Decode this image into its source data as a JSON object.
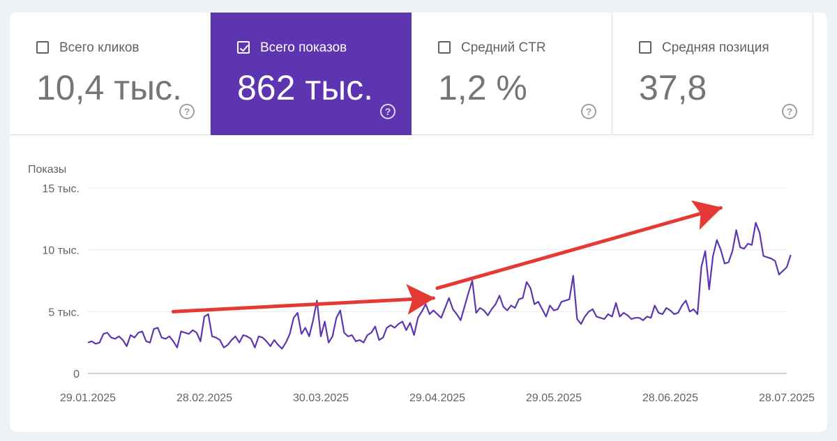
{
  "cards": [
    {
      "label": "Всего кликов",
      "value": "10,4 тыс.",
      "selected": false
    },
    {
      "label": "Всего показов",
      "value": "862 тыс.",
      "selected": true
    },
    {
      "label": "Средний CTR",
      "value": "1,2 %",
      "selected": false
    },
    {
      "label": "Средняя позиция",
      "value": "37,8",
      "selected": false
    }
  ],
  "help_glyph": "?",
  "colors": {
    "accent": "#5e35b1",
    "series_line": "#5e35b1",
    "annotation_arrow": "#e53935",
    "grid": "#e8eaed",
    "text": "#5f6368"
  },
  "chart_data": {
    "type": "line",
    "ylabel": "Показы",
    "xlabel": "",
    "title": "",
    "ylim": [
      0,
      15000
    ],
    "yticks": [
      0,
      5000,
      10000,
      15000
    ],
    "ytick_labels": [
      "0",
      "5 тыс.",
      "10 тыс.",
      "15 тыс."
    ],
    "xtick_labels": [
      "29.01.2025",
      "28.02.2025",
      "30.03.2025",
      "29.04.2025",
      "29.05.2025",
      "28.06.2025",
      "28.07.2025"
    ],
    "xlim": [
      "2025-01-29",
      "2025-07-28"
    ],
    "grid": true,
    "legend": "none",
    "x_start": "2025-01-29",
    "series": [
      {
        "values": [
          2500,
          2600,
          2400,
          2500,
          3200,
          3300,
          2900,
          2800,
          3000,
          2700,
          2200,
          3100,
          2900,
          3300,
          3400,
          2600,
          2500,
          3600,
          3700,
          2900,
          2800,
          3000,
          2600,
          2100,
          3400,
          3300,
          3200,
          3500,
          3300,
          2600,
          4600,
          4800,
          3000,
          2900,
          2700,
          2100,
          2300,
          2700,
          3000,
          2500,
          3100,
          3000,
          2800,
          2100,
          3000,
          2900,
          2600,
          2200,
          2700,
          2300,
          2000,
          2500,
          3200,
          4500,
          4900,
          3200,
          3700,
          3000,
          4300,
          5900,
          3000,
          4200,
          2500,
          3000,
          4500,
          5100,
          3300,
          3000,
          3100,
          2600,
          2700,
          2500,
          3100,
          3300,
          3800,
          2700,
          2900,
          3700,
          3900,
          3700,
          4000,
          4200,
          3500,
          4100,
          3100,
          4500,
          5000,
          5600,
          4800,
          5100,
          4800,
          4500,
          5300,
          6100,
          5200,
          4800,
          4300,
          5400,
          6500,
          7500,
          4900,
          5300,
          5100,
          4700,
          5200,
          5600,
          6300,
          5400,
          5100,
          5500,
          5300,
          6000,
          6100,
          7400,
          6900,
          5600,
          5800,
          5200,
          4600,
          5500,
          5100,
          5200,
          5800,
          5900,
          6000,
          7900,
          4400,
          4000,
          4600,
          5000,
          5200,
          4600,
          4500,
          4400,
          4800,
          4600,
          5700,
          4600,
          4900,
          4700,
          4400,
          4500,
          4500,
          4300,
          4600,
          4500,
          5500,
          4900,
          4800,
          5300,
          5100,
          4800,
          4900,
          5500,
          5900,
          5000,
          5200,
          4800,
          8600,
          9900,
          6800,
          9500,
          10800,
          10000,
          8900,
          9000,
          9900,
          11600,
          10200,
          10100,
          10500,
          10400,
          12200,
          11400,
          9500,
          9400,
          9300,
          9100,
          8000,
          8300,
          8600,
          9600
        ]
      }
    ],
    "annotations": [
      {
        "type": "arrow",
        "from": {
          "x": "2025-02-20",
          "y": 5000
        },
        "to": {
          "x": "2025-04-28",
          "y": 6100
        }
      },
      {
        "type": "arrow",
        "from": {
          "x": "2025-04-29",
          "y": 6900
        },
        "to": {
          "x": "2025-07-11",
          "y": 13400
        }
      }
    ]
  }
}
